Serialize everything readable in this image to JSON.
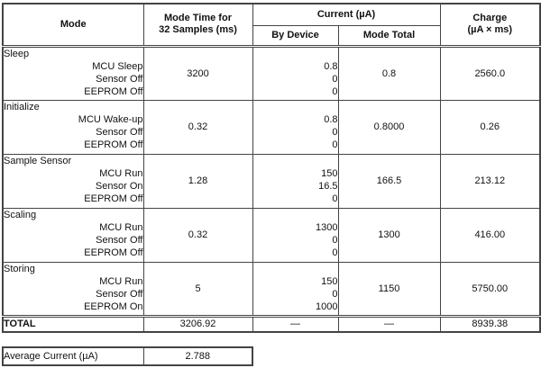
{
  "table": {
    "headers": {
      "mode": "Mode",
      "mode_time_line1": "Mode Time for",
      "mode_time_line2": "32 Samples (ms)",
      "current": "Current (µA)",
      "by_device": "By Device",
      "mode_total": "Mode Total",
      "charge_line1": "Charge",
      "charge_line2": "(µA × ms)"
    },
    "sections": [
      {
        "name": "Sleep",
        "items": [
          "MCU Sleep",
          "Sensor Off",
          "EEPROM Off"
        ],
        "mode_time": "3200",
        "by_device": [
          "0.8",
          "0",
          "0"
        ],
        "mode_total": "0.8",
        "charge": "2560.0"
      },
      {
        "name": "Initialize",
        "items": [
          "MCU Wake-up",
          "Sensor Off",
          "EEPROM Off"
        ],
        "mode_time": "0.32",
        "by_device": [
          "0.8",
          "0",
          "0"
        ],
        "mode_total": "0.8000",
        "charge": "0.26"
      },
      {
        "name": "Sample Sensor",
        "items": [
          "MCU Run",
          "Sensor On",
          "EEPROM Off"
        ],
        "mode_time": "1.28",
        "by_device": [
          "150",
          "16.5",
          "0"
        ],
        "mode_total": "166.5",
        "charge": "213.12"
      },
      {
        "name": "Scaling",
        "items": [
          "MCU Run",
          "Sensor Off",
          "EEPROM Off"
        ],
        "mode_time": "0.32",
        "by_device": [
          "1300",
          "0",
          "0"
        ],
        "mode_total": "1300",
        "charge": "416.00"
      },
      {
        "name": "Storing",
        "items": [
          "MCU Run",
          "Sensor Off",
          "EEPROM On"
        ],
        "mode_time": "5",
        "by_device": [
          "150",
          "0",
          "1000"
        ],
        "mode_total": "1150",
        "charge": "5750.00"
      }
    ],
    "total": {
      "label": "TOTAL",
      "mode_time": "3206.92",
      "by_device": "—",
      "mode_total": "—",
      "charge": "8939.38"
    }
  },
  "summary": {
    "label": "Average Current (µA)",
    "value": "2.788"
  }
}
